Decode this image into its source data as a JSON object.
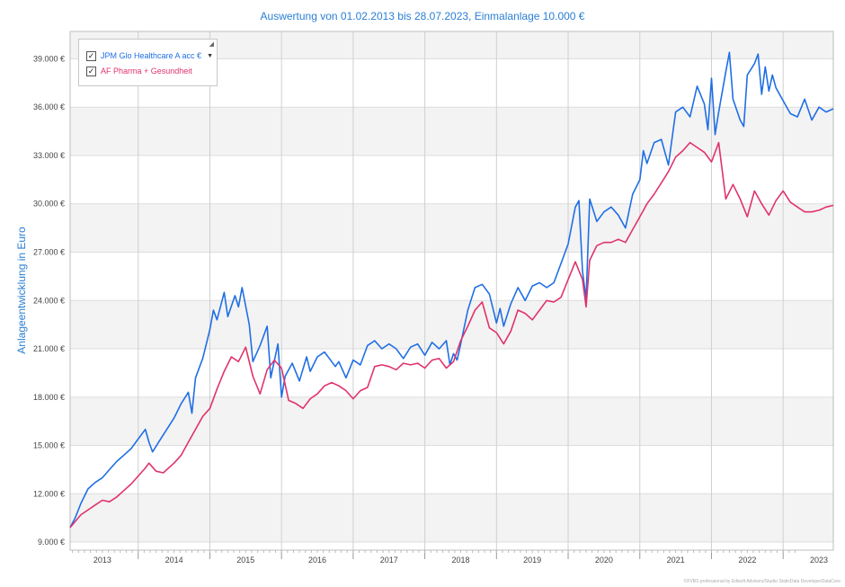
{
  "chart_data": {
    "type": "line",
    "title": "Auswertung von 01.02.2013 bis 28.07.2023, Einmalanlage 10.000 €",
    "ylabel": "Anlageentwicklung  in Euro",
    "xlabel": "",
    "ylim": [
      8500,
      40700
    ],
    "xlim": [
      2012.55,
      2023.2
    ],
    "yticks": [
      9000,
      12000,
      15000,
      18000,
      21000,
      24000,
      27000,
      30000,
      33000,
      36000,
      39000
    ],
    "ytick_labels": [
      "9.000 €",
      "12.000 €",
      "15.000 €",
      "18.000 €",
      "21.000 €",
      "24.000 €",
      "27.000 €",
      "30.000 €",
      "33.000 €",
      "36.000 €",
      "39.000 €"
    ],
    "xticks": [
      "2013",
      "2014",
      "2015",
      "2016",
      "2017",
      "2018",
      "2019",
      "2020",
      "2021",
      "2022",
      "2023"
    ],
    "legend_position": "top-left",
    "footer": "©FVBS professional by Edisoft Advisors/Studio StaticData DeveloperDataCore",
    "series": [
      {
        "name": "JPM Glo Healthcare A acc €",
        "color": "#1f6fe5",
        "x": [
          2012.55,
          2012.62,
          2012.7,
          2012.8,
          2012.9,
          2013.0,
          2013.1,
          2013.2,
          2013.3,
          2013.4,
          2013.5,
          2013.6,
          2013.65,
          2013.7,
          2013.8,
          2013.9,
          2014.0,
          2014.1,
          2014.2,
          2014.25,
          2014.3,
          2014.4,
          2014.5,
          2014.55,
          2014.6,
          2014.7,
          2014.75,
          2014.85,
          2014.9,
          2014.95,
          2015.05,
          2015.1,
          2015.2,
          2015.3,
          2015.35,
          2015.45,
          2015.5,
          2015.55,
          2015.65,
          2015.75,
          2015.85,
          2015.9,
          2016.0,
          2016.1,
          2016.2,
          2016.25,
          2016.3,
          2016.4,
          2016.5,
          2016.6,
          2016.7,
          2016.8,
          2016.9,
          2017.0,
          2017.1,
          2017.2,
          2017.3,
          2017.4,
          2017.5,
          2017.6,
          2017.7,
          2017.8,
          2017.85,
          2017.9,
          2017.95,
          2018.0,
          2018.1,
          2018.2,
          2018.3,
          2018.4,
          2018.5,
          2018.55,
          2018.6,
          2018.7,
          2018.8,
          2018.9,
          2019.0,
          2019.1,
          2019.2,
          2019.3,
          2019.4,
          2019.5,
          2019.6,
          2019.65,
          2019.7,
          2019.75,
          2019.8,
          2019.9,
          2020.0,
          2020.1,
          2020.2,
          2020.3,
          2020.4,
          2020.5,
          2020.55,
          2020.6,
          2020.7,
          2020.8,
          2020.9,
          2021.0,
          2021.1,
          2021.2,
          2021.3,
          2021.4,
          2021.45,
          2021.5,
          2021.55,
          2021.6,
          2021.7,
          2021.75,
          2021.8,
          2021.9,
          2021.95,
          2022.0,
          2022.1,
          2022.15,
          2022.2,
          2022.25,
          2022.3,
          2022.35,
          2022.4,
          2022.5,
          2022.6,
          2022.7,
          2022.8,
          2022.9,
          2023.0,
          2023.1,
          2023.2
        ],
        "y": [
          9900,
          10500,
          11400,
          12300,
          12700,
          13000,
          13500,
          14000,
          14400,
          14800,
          15400,
          16000,
          15200,
          14600,
          15300,
          16000,
          16700,
          17600,
          18300,
          17000,
          19200,
          20400,
          22200,
          23400,
          22800,
          24500,
          23000,
          24300,
          23600,
          24800,
          22500,
          20200,
          21200,
          22400,
          19200,
          21300,
          18000,
          19300,
          20100,
          19000,
          20500,
          19600,
          20500,
          20800,
          20200,
          19900,
          20200,
          19200,
          20300,
          20000,
          21200,
          21500,
          21000,
          21300,
          21000,
          20400,
          21100,
          21300,
          20600,
          21400,
          21000,
          21500,
          20000,
          20700,
          20300,
          21300,
          23400,
          24800,
          25000,
          24400,
          22600,
          23500,
          22400,
          23800,
          24800,
          24000,
          24900,
          25100,
          24800,
          25100,
          26300,
          27500,
          29800,
          30200,
          25800,
          24100,
          30300,
          28900,
          29500,
          29800,
          29300,
          28500,
          30600,
          31500,
          33300,
          32500,
          33800,
          34000,
          32400,
          35700,
          36000,
          35400,
          37300,
          36200,
          34600,
          37800,
          34300,
          35700,
          38200,
          39400,
          36500,
          35200,
          34800,
          38000,
          38700,
          39300,
          36800,
          38500,
          37000,
          38000,
          37200,
          36400,
          35600,
          35400,
          36500,
          35200,
          36000,
          35700,
          35900
        ]
      },
      {
        "name": "AF Pharma + Gesundheit",
        "color": "#e0336b",
        "x": [
          2012.55,
          2012.7,
          2012.9,
          2013.0,
          2013.1,
          2013.2,
          2013.3,
          2013.4,
          2013.5,
          2013.6,
          2013.65,
          2013.75,
          2013.85,
          2014.0,
          2014.1,
          2014.2,
          2014.3,
          2014.4,
          2014.5,
          2014.6,
          2014.7,
          2014.8,
          2014.9,
          2015.0,
          2015.1,
          2015.2,
          2015.3,
          2015.4,
          2015.5,
          2015.6,
          2015.7,
          2015.8,
          2015.9,
          2016.0,
          2016.1,
          2016.2,
          2016.3,
          2016.4,
          2016.5,
          2016.6,
          2016.7,
          2016.8,
          2016.9,
          2017.0,
          2017.1,
          2017.2,
          2017.3,
          2017.4,
          2017.5,
          2017.6,
          2017.7,
          2017.8,
          2017.9,
          2018.0,
          2018.1,
          2018.2,
          2018.3,
          2018.4,
          2018.5,
          2018.6,
          2018.7,
          2018.8,
          2018.9,
          2019.0,
          2019.1,
          2019.2,
          2019.3,
          2019.4,
          2019.5,
          2019.6,
          2019.7,
          2019.75,
          2019.8,
          2019.9,
          2020.0,
          2020.1,
          2020.2,
          2020.3,
          2020.4,
          2020.5,
          2020.6,
          2020.7,
          2020.8,
          2020.9,
          2021.0,
          2021.1,
          2021.2,
          2021.3,
          2021.4,
          2021.5,
          2021.6,
          2021.7,
          2021.8,
          2021.9,
          2022.0,
          2022.1,
          2022.2,
          2022.3,
          2022.4,
          2022.5,
          2022.6,
          2022.7,
          2022.8,
          2022.9,
          2023.0,
          2023.1,
          2023.2
        ],
        "y": [
          9900,
          10700,
          11300,
          11600,
          11500,
          11800,
          12200,
          12600,
          13100,
          13600,
          13900,
          13400,
          13300,
          13900,
          14400,
          15200,
          16000,
          16800,
          17300,
          18500,
          19600,
          20500,
          20200,
          21100,
          19300,
          18200,
          19700,
          20300,
          19800,
          17800,
          17600,
          17300,
          17900,
          18200,
          18700,
          18900,
          18700,
          18400,
          17900,
          18400,
          18600,
          19900,
          20000,
          19900,
          19700,
          20100,
          20000,
          20100,
          19800,
          20300,
          20400,
          19800,
          20200,
          21500,
          22400,
          23400,
          23900,
          22300,
          22000,
          21300,
          22100,
          23400,
          23200,
          22800,
          23400,
          24000,
          23900,
          24200,
          25300,
          26400,
          25300,
          23600,
          26500,
          27400,
          27600,
          27600,
          27800,
          27600,
          28400,
          29200,
          30000,
          30600,
          31300,
          32000,
          32900,
          33300,
          33800,
          33500,
          33200,
          32600,
          33800,
          30300,
          31200,
          30300,
          29200,
          30800,
          30000,
          29300,
          30200,
          30800,
          30100,
          29800,
          29500,
          29500,
          29600,
          29800,
          29900
        ]
      }
    ]
  }
}
